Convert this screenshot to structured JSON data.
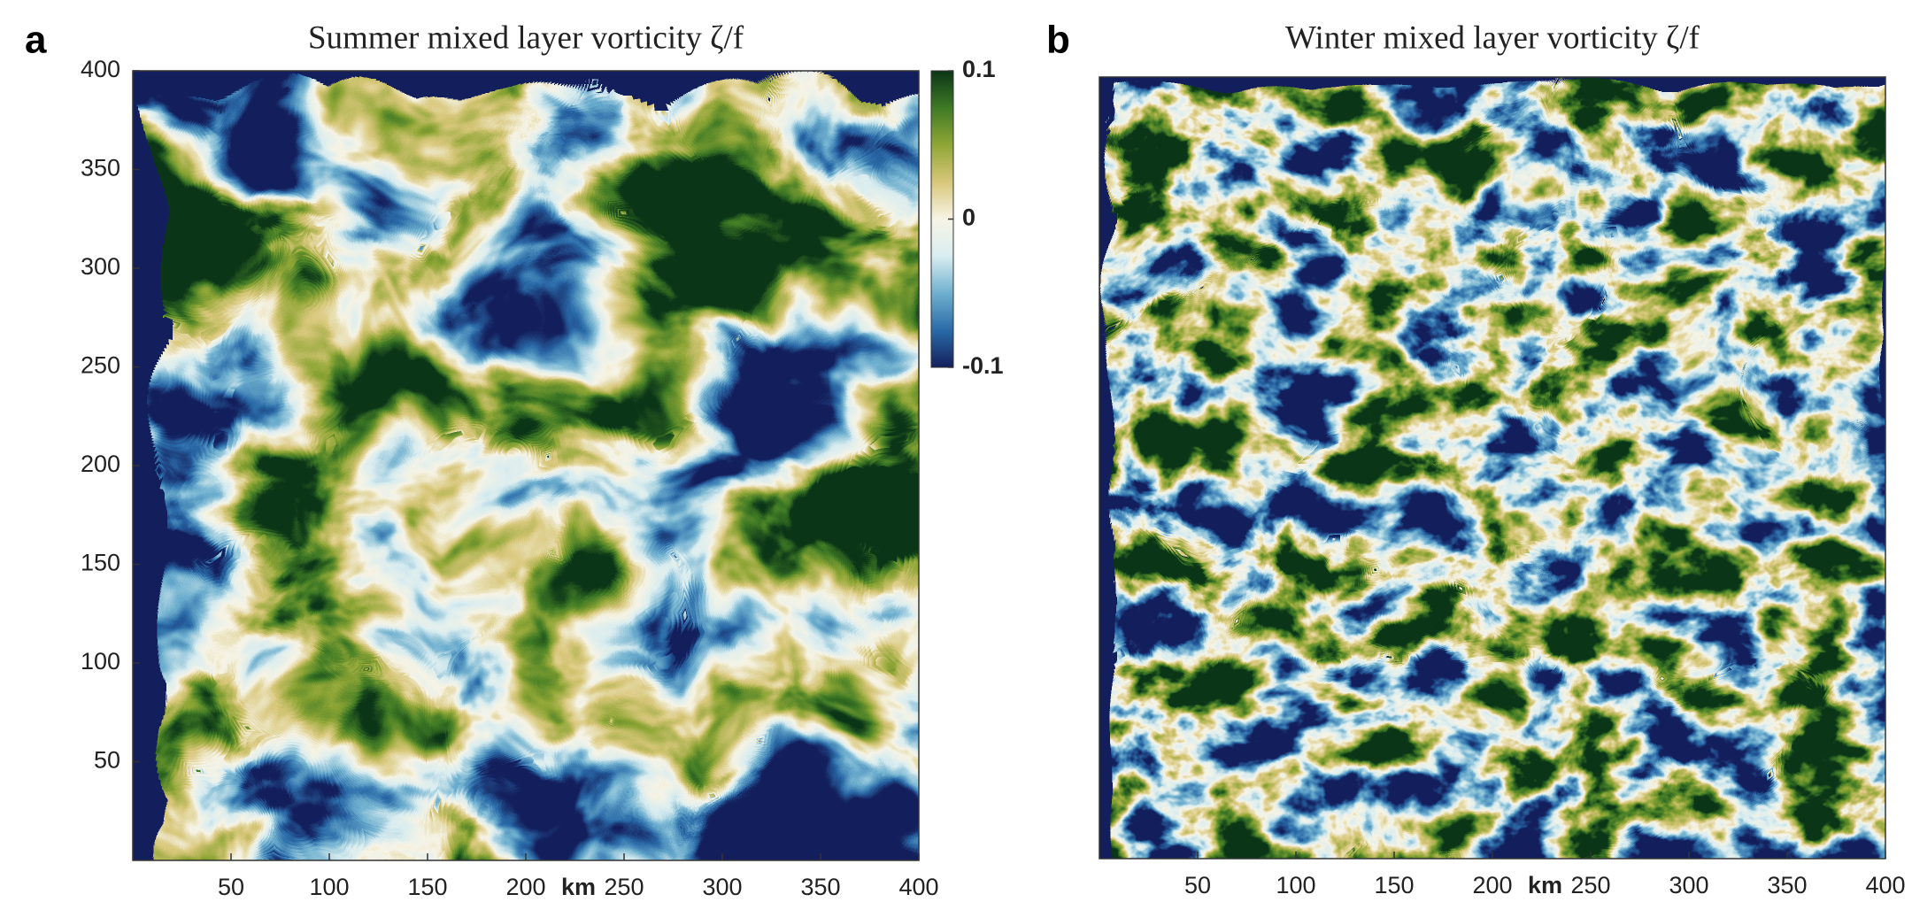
{
  "chart_data": [
    {
      "type": "heatmap",
      "panel": "a",
      "title": "Summer mixed layer vorticity ζ/f",
      "xlabel": "km",
      "xlim": [
        0,
        400
      ],
      "xticks": [
        50,
        100,
        150,
        200,
        250,
        300,
        350,
        400
      ],
      "ylim": [
        0,
        400
      ],
      "yticks": [
        50,
        100,
        150,
        200,
        250,
        300,
        350,
        400
      ],
      "colormap": [
        "#141f5c",
        "#2a6aa8",
        "#6fb0cf",
        "#d9edf0",
        "#f7f4e6",
        "#d8c77a",
        "#8fa636",
        "#3f7a25",
        "#0b3518"
      ],
      "colorbar": {
        "lim": [
          -0.1,
          0.1
        ],
        "ticks": [
          -0.1,
          0,
          0.1
        ]
      }
    },
    {
      "type": "heatmap",
      "panel": "b",
      "title": "Winter mixed layer vorticity ζ/f",
      "xlabel": "km",
      "xlim": [
        0,
        400
      ],
      "xticks": [
        50,
        100,
        150,
        200,
        250,
        300,
        350,
        400
      ],
      "colormap": [
        "#141f5c",
        "#2a6aa8",
        "#6fb0cf",
        "#d9edf0",
        "#f7f4e6",
        "#d8c77a",
        "#8fa636",
        "#3f7a25",
        "#0b3518"
      ]
    }
  ]
}
